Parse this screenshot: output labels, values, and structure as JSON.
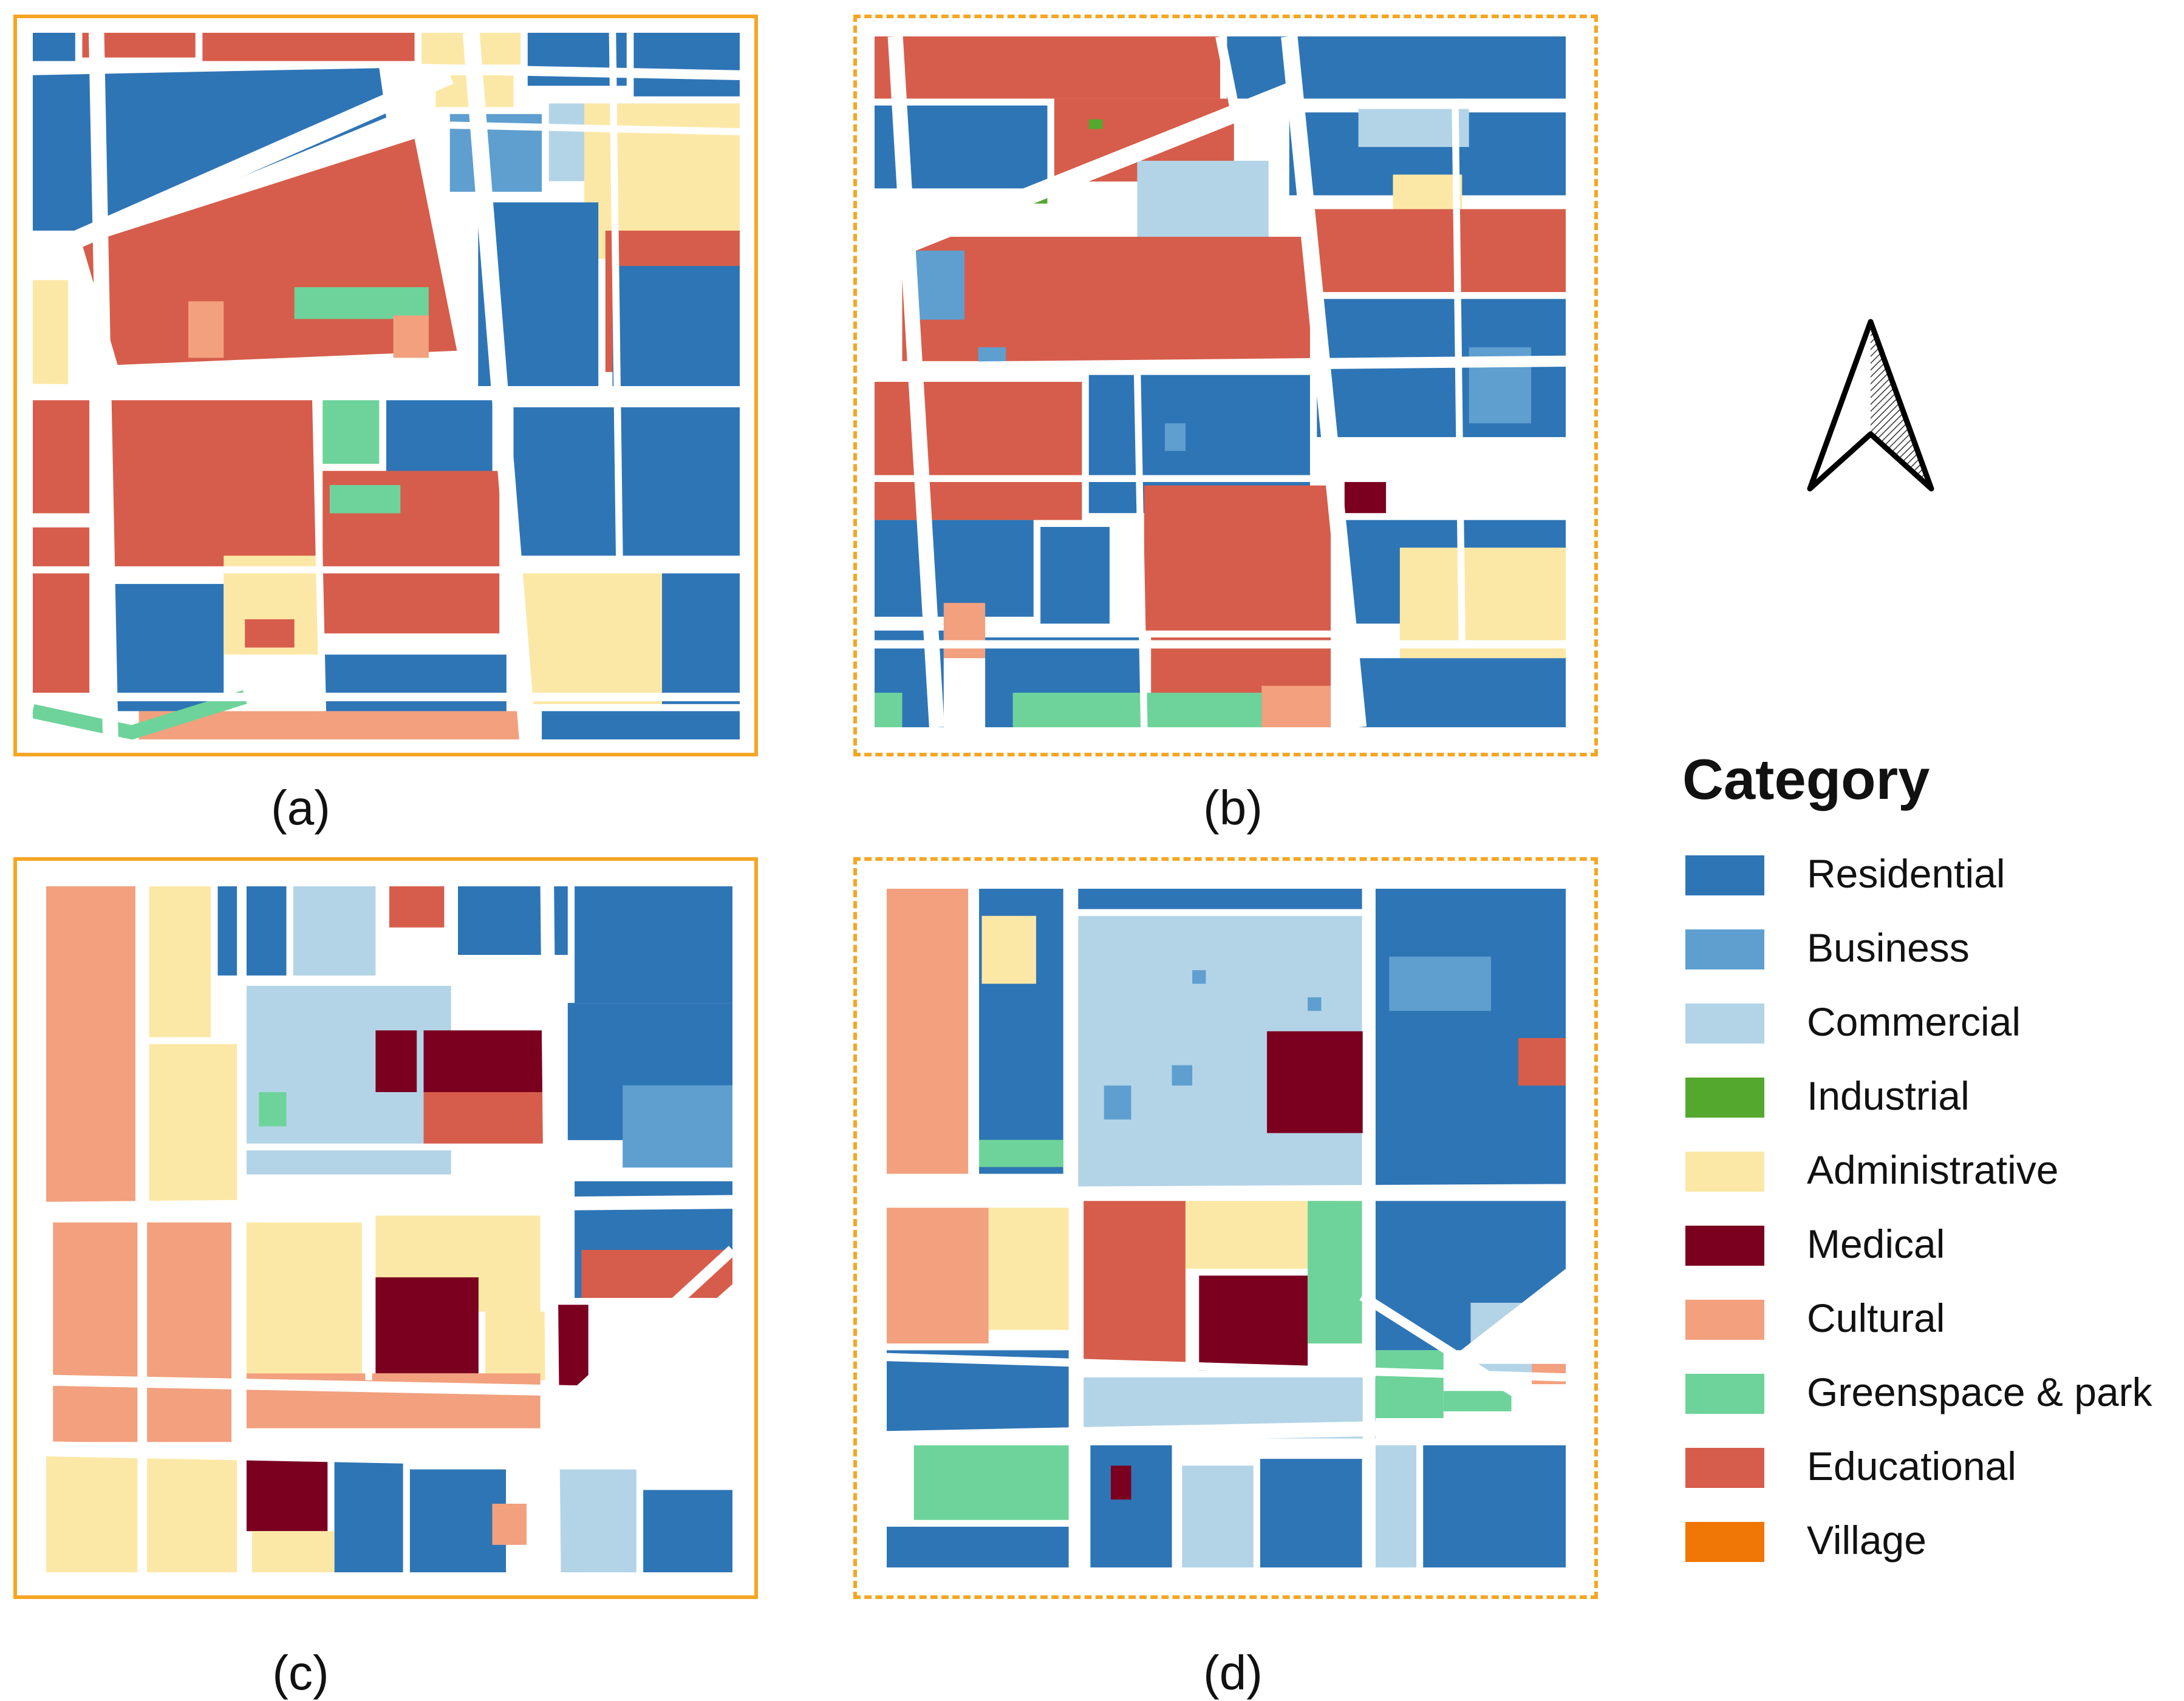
{
  "panels": [
    {
      "id": "a",
      "caption": "(a)",
      "frame": "solid"
    },
    {
      "id": "b",
      "caption": "(b)",
      "frame": "dashed"
    },
    {
      "id": "c",
      "caption": "(c)",
      "frame": "solid"
    },
    {
      "id": "d",
      "caption": "(d)",
      "frame": "dashed"
    }
  ],
  "frame_color": "#F5A623",
  "legend": {
    "title": "Category",
    "items": [
      {
        "label": "Residential",
        "color": "#2E75B6"
      },
      {
        "label": "Business",
        "color": "#5E9FD0"
      },
      {
        "label": "Commercial",
        "color": "#B3D4E7"
      },
      {
        "label": "Industrial",
        "color": "#54A82E"
      },
      {
        "label": "Administrative",
        "color": "#FCE8A6"
      },
      {
        "label": "Medical",
        "color": "#7B0020"
      },
      {
        "label": "Cultural",
        "color": "#F2A07E"
      },
      {
        "label": "Greenspace & park",
        "color": "#6DD39A"
      },
      {
        "label": "Educational",
        "color": "#D65D4B"
      },
      {
        "label": "Village",
        "color": "#F07605"
      }
    ]
  },
  "north_arrow": {
    "icon": "north-arrow-icon"
  }
}
